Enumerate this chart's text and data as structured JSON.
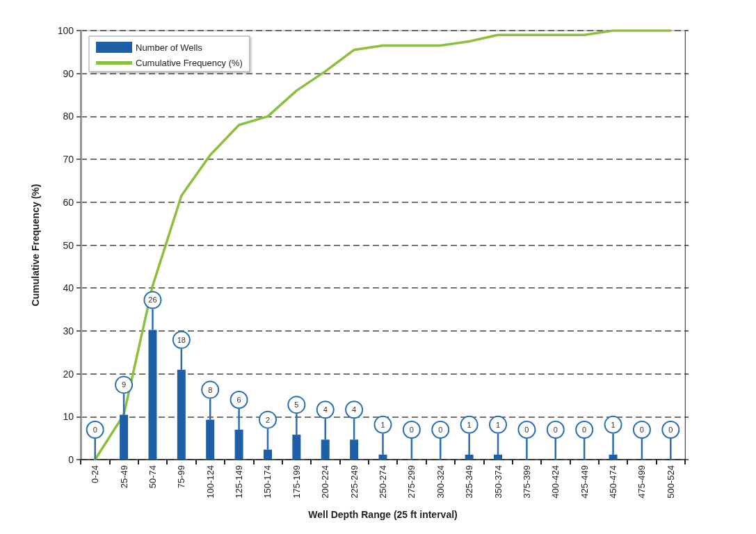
{
  "chart_data": {
    "type": "bar",
    "xlabel": "Well Depth Range (25 ft interval)",
    "ylabel": "Cumulative Frequency (%)",
    "categories": [
      "0-24",
      "25-49",
      "50-74",
      "75-99",
      "100-124",
      "125-149",
      "150-174",
      "175-199",
      "200-224",
      "225-249",
      "250-274",
      "275-299",
      "300-324",
      "325-349",
      "350-374",
      "375-399",
      "400-424",
      "425-449",
      "450-474",
      "475-499",
      "500-524"
    ],
    "series": [
      {
        "name": "Number of Wells",
        "axis": "y2",
        "color": "#1f5fa8",
        "values": [
          0,
          9,
          26,
          18,
          8,
          6,
          2,
          5,
          4,
          4,
          1,
          0,
          0,
          1,
          1,
          0,
          0,
          0,
          1,
          0,
          0
        ],
        "value_labels": [
          "0",
          "9",
          "26",
          "18",
          "8",
          "6",
          "2",
          "5",
          "4",
          "4",
          "1",
          "0",
          "0",
          "1",
          "1",
          "0",
          "0",
          "0",
          "1",
          "0",
          "0"
        ]
      },
      {
        "name": "Cumulative Frequency (%)",
        "type": "line",
        "color": "#8cbf3f",
        "values": [
          0,
          10.5,
          40.5,
          61.5,
          71,
          78,
          80,
          86,
          90.5,
          95.5,
          96.5,
          96.5,
          96.5,
          97.5,
          99,
          99,
          99,
          99,
          100,
          100,
          100
        ]
      }
    ],
    "ylim": [
      0,
      100
    ],
    "yticks": [
      0,
      10,
      20,
      30,
      40,
      50,
      60,
      70,
      80,
      90,
      100
    ],
    "y2lim": [
      0,
      86
    ],
    "grid": "y",
    "legend": "top left",
    "marker": "none",
    "line_style": "solid"
  }
}
